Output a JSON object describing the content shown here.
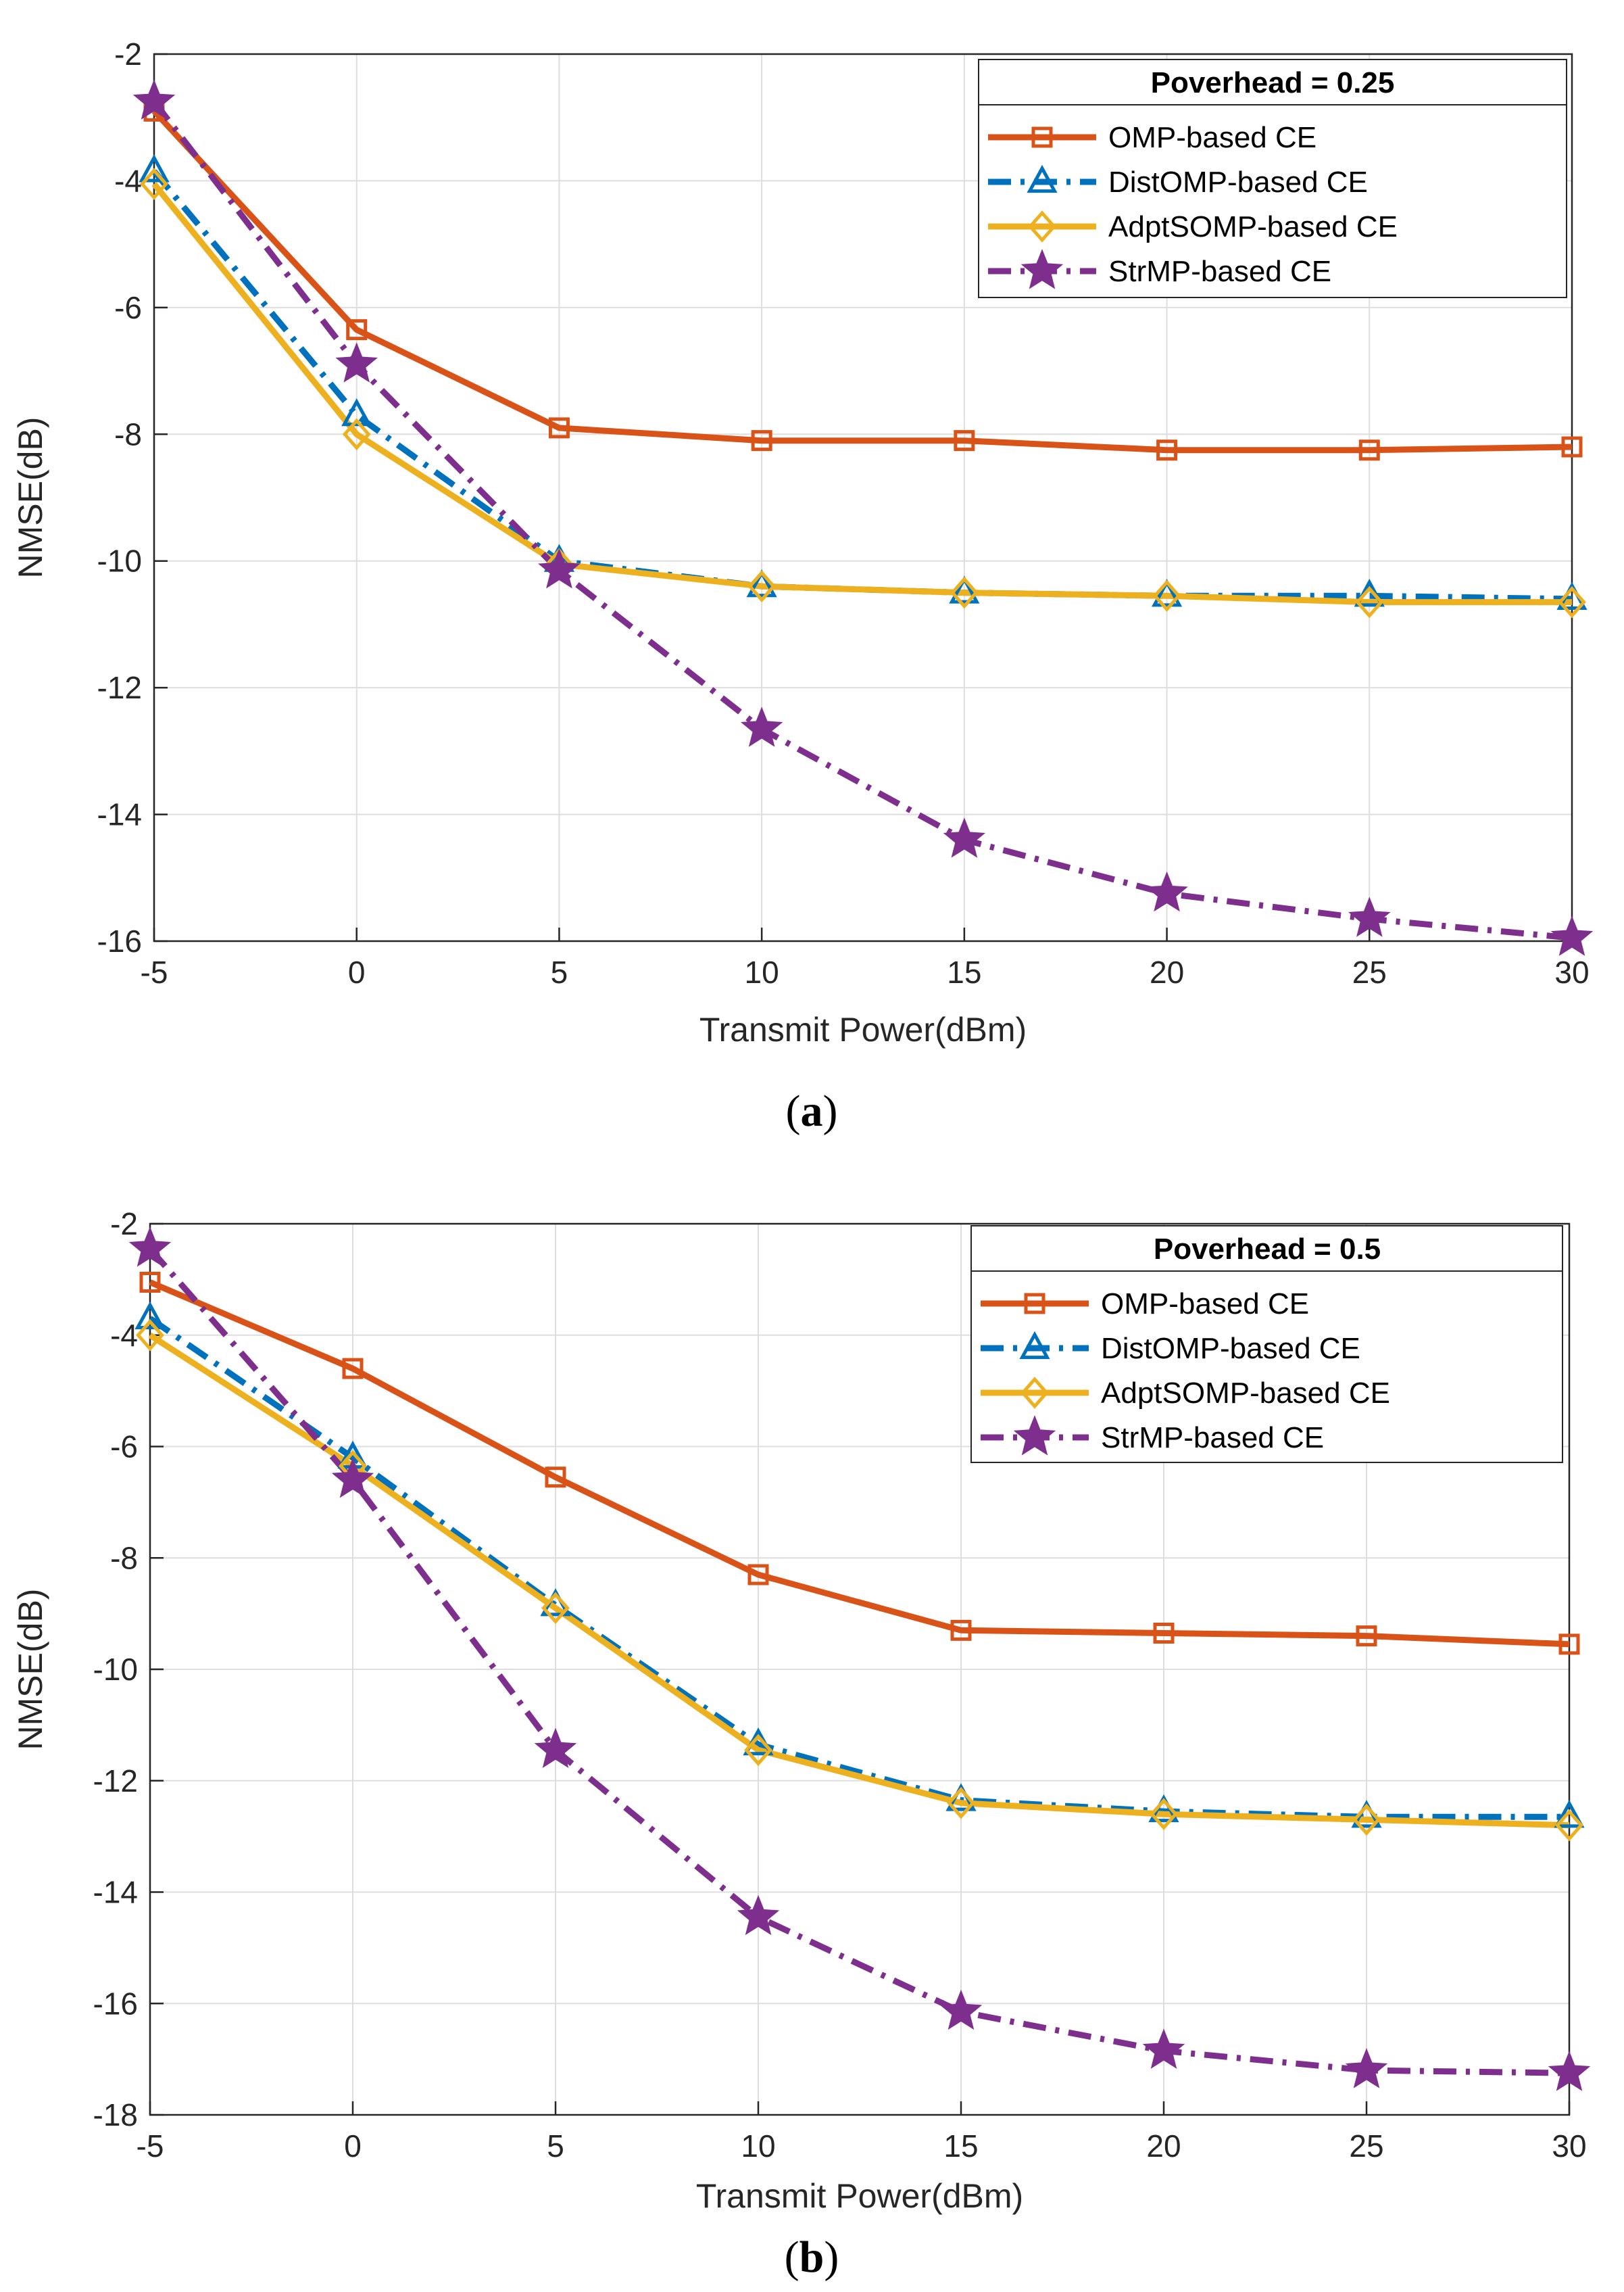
{
  "chart_data": [
    {
      "type": "line",
      "caption_open": "(",
      "caption_letter": "a",
      "caption_close": ")",
      "xlabel": "Transmit Power(dBm)",
      "ylabel": "NMSE(dB)",
      "x": [
        -5,
        0,
        5,
        10,
        15,
        20,
        25,
        30
      ],
      "xlim": [
        -5,
        30
      ],
      "ylim": [
        -16,
        -2
      ],
      "xticks": [
        -5,
        0,
        5,
        10,
        15,
        20,
        25,
        30
      ],
      "yticks": [
        -2,
        -4,
        -6,
        -8,
        -10,
        -12,
        -14,
        -16
      ],
      "grid": true,
      "legend_position": "top-right",
      "legend_title": "Poverhead = 0.25",
      "series": [
        {
          "name": "OMP-based CE",
          "color": "#D95319",
          "line": "solid",
          "marker": "square",
          "values": [
            -2.9,
            -6.35,
            -7.9,
            -8.1,
            -8.1,
            -8.25,
            -8.25,
            -8.2
          ]
        },
        {
          "name": "DistOMP-based CE",
          "color": "#0072BD",
          "line": "dashdot",
          "marker": "triangle",
          "values": [
            -3.85,
            -7.7,
            -10.0,
            -10.4,
            -10.5,
            -10.55,
            -10.55,
            -10.6
          ]
        },
        {
          "name": "AdptSOMP-based CE",
          "color": "#EDB120",
          "line": "solid",
          "marker": "diamond",
          "values": [
            -4.05,
            -8.0,
            -10.05,
            -10.4,
            -10.5,
            -10.55,
            -10.65,
            -10.65
          ]
        },
        {
          "name": "StrMP-based CE",
          "color": "#7E2F8E",
          "line": "dashdot",
          "marker": "star",
          "values": [
            -2.75,
            -6.9,
            -10.15,
            -12.65,
            -14.4,
            -15.25,
            -15.65,
            -15.95
          ]
        }
      ]
    },
    {
      "type": "line",
      "caption_open": "(",
      "caption_letter": "b",
      "caption_close": ")",
      "xlabel": "Transmit Power(dBm)",
      "ylabel": "NMSE(dB)",
      "x": [
        -5,
        0,
        5,
        10,
        15,
        20,
        25,
        30
      ],
      "xlim": [
        -5,
        30
      ],
      "ylim": [
        -18,
        -2
      ],
      "xticks": [
        -5,
        0,
        5,
        10,
        15,
        20,
        25,
        30
      ],
      "yticks": [
        -2,
        -4,
        -6,
        -8,
        -10,
        -12,
        -14,
        -16,
        -18
      ],
      "grid": true,
      "legend_position": "top-right",
      "legend_title": "Poverhead = 0.5",
      "series": [
        {
          "name": "OMP-based CE",
          "color": "#D95319",
          "line": "solid",
          "marker": "square",
          "values": [
            -3.05,
            -4.6,
            -6.55,
            -8.3,
            -9.3,
            -9.35,
            -9.4,
            -9.55
          ]
        },
        {
          "name": "DistOMP-based CE",
          "color": "#0072BD",
          "line": "dashdot",
          "marker": "triangle",
          "values": [
            -3.7,
            -6.2,
            -8.85,
            -11.35,
            -12.35,
            -12.55,
            -12.65,
            -12.65
          ]
        },
        {
          "name": "AdptSOMP-based CE",
          "color": "#EDB120",
          "line": "solid",
          "marker": "diamond",
          "values": [
            -4.0,
            -6.35,
            -8.9,
            -11.45,
            -12.4,
            -12.6,
            -12.7,
            -12.8
          ]
        },
        {
          "name": "StrMP-based CE",
          "color": "#7E2F8E",
          "line": "dashdot",
          "marker": "star",
          "values": [
            -2.45,
            -6.6,
            -11.45,
            -14.45,
            -16.15,
            -16.85,
            -17.2,
            -17.25
          ]
        }
      ]
    }
  ]
}
